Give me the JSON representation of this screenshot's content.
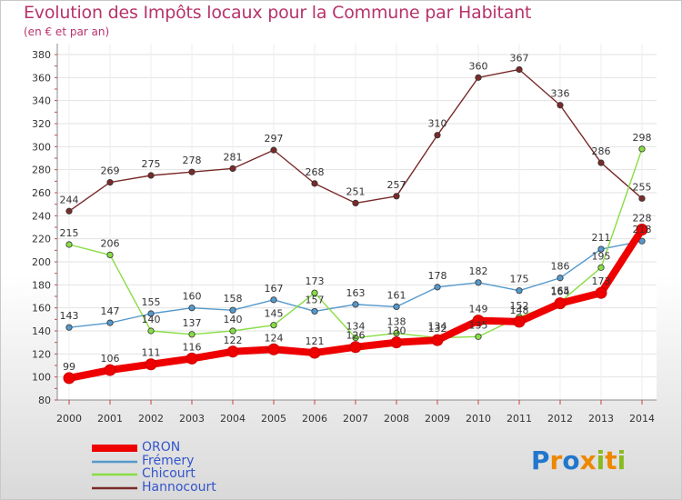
{
  "header": {
    "title": "Evolution des Impôts locaux pour la Commune par Habitant",
    "subtitle": "(en € et par an)"
  },
  "chart_data": {
    "type": "line",
    "title": "Evolution des Impôts locaux pour la Commune par Habitant",
    "subtitle": "(en € et par an)",
    "xlabel": "",
    "ylabel": "",
    "ylim": [
      80,
      380
    ],
    "y_ticks": [
      80,
      100,
      120,
      140,
      160,
      180,
      200,
      220,
      240,
      260,
      280,
      300,
      320,
      340,
      360,
      380
    ],
    "categories": [
      "2000",
      "2001",
      "2002",
      "2003",
      "2004",
      "2005",
      "2006",
      "2007",
      "2008",
      "2009",
      "2010",
      "2011",
      "2012",
      "2013",
      "2014"
    ],
    "series": [
      {
        "name": "ORON",
        "color": "#ee0000",
        "values": [
          99,
          106,
          111,
          116,
          122,
          124,
          121,
          126,
          130,
          132,
          149,
          148,
          164,
          173,
          228
        ],
        "labels": [
          "99",
          "106",
          "111",
          "116",
          "122",
          "124",
          "121",
          "",
          "",
          "",
          "149",
          "",
          "",
          "",
          ""
        ]
      },
      {
        "name": "Frémery",
        "color": "#5599cc",
        "values": [
          143,
          147,
          155,
          160,
          158,
          167,
          157,
          163,
          161,
          178,
          182,
          175,
          186,
          211,
          218
        ],
        "labels": [
          "143",
          "147",
          "155",
          "160",
          "158",
          "167",
          "157",
          "163",
          "161",
          "178",
          "182",
          "175",
          "186",
          "211",
          "218"
        ]
      },
      {
        "name": "Chicourt",
        "color": "#88dd44",
        "values": [
          215,
          206,
          140,
          137,
          140,
          145,
          173,
          134,
          138,
          134,
          135,
          152,
          165,
          195,
          298
        ],
        "labels": [
          "215",
          "206",
          "140",
          "137",
          "140",
          "145",
          "173",
          "134",
          "138",
          "134",
          "135",
          "152",
          "165",
          "195",
          "298"
        ]
      },
      {
        "name": "Hannocourt",
        "color": "#7a2a2a",
        "values": [
          244,
          269,
          275,
          278,
          281,
          297,
          268,
          251,
          257,
          310,
          360,
          367,
          336,
          286,
          255
        ],
        "labels": [
          "244",
          "269",
          "275",
          "278",
          "281",
          "297",
          "268",
          "251",
          "257",
          "310",
          "360",
          "367",
          "336",
          "286",
          "255"
        ]
      }
    ],
    "overlap_labels": [
      {
        "text": "126",
        "year_index": 7,
        "value": 126
      },
      {
        "text": "130",
        "year_index": 8,
        "value": 130
      },
      {
        "text": "132",
        "year_index": 9,
        "value": 132
      },
      {
        "text": "148",
        "year_index": 11,
        "value": 148
      },
      {
        "text": "164",
        "year_index": 12,
        "value": 164
      },
      {
        "text": "173",
        "year_index": 13,
        "value": 173
      },
      {
        "text": "228",
        "year_index": 14,
        "value": 228
      }
    ],
    "legend_position": "bottom-left"
  },
  "legend": {
    "items": [
      {
        "label": "ORON",
        "color": "#ee0000",
        "text_color": "#3355cc"
      },
      {
        "label": "Frémery",
        "color": "#5599cc",
        "text_color": "#3355cc"
      },
      {
        "label": "Chicourt",
        "color": "#88dd44",
        "text_color": "#3355cc"
      },
      {
        "label": "Hannocourt",
        "color": "#7a2a2a",
        "text_color": "#3355cc"
      }
    ]
  },
  "brand": {
    "letters": [
      {
        "ch": "P",
        "color": "#2277cc"
      },
      {
        "ch": "r",
        "color": "#ee8800"
      },
      {
        "ch": "o",
        "color": "#2277cc"
      },
      {
        "ch": "x",
        "color": "#ee8800"
      },
      {
        "ch": "i",
        "color": "#88bb22"
      },
      {
        "ch": "t",
        "color": "#ee8800"
      },
      {
        "ch": "i",
        "color": "#88bb22"
      }
    ]
  }
}
